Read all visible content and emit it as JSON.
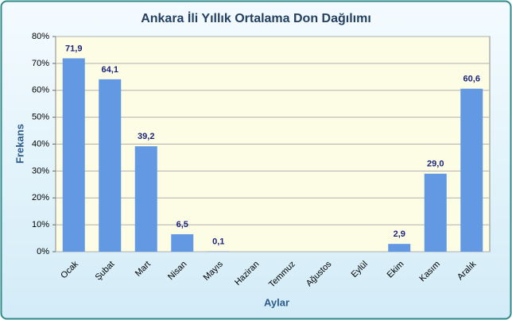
{
  "chart_data": {
    "type": "bar",
    "title": "Ankara İli Yıllık Ortalama Don Dağılımı",
    "y_label": "Frekans",
    "x_label": "Aylar",
    "categories": [
      "Ocak",
      "Şubat",
      "Mart",
      "Nisan",
      "Mayıs",
      "Haziran",
      "Temmuz",
      "Ağustos",
      "Eylül",
      "Ekim",
      "Kasım",
      "Aralık"
    ],
    "values": [
      71.9,
      64.1,
      39.2,
      6.5,
      0.1,
      null,
      null,
      null,
      null,
      2.9,
      29.0,
      60.6
    ],
    "value_labels": [
      "71,9",
      "64,1",
      "39,2",
      "6,5",
      "0,1",
      null,
      null,
      null,
      null,
      "2,9",
      "29,0",
      "60,6"
    ],
    "color": "#6399e2",
    "ylim": [
      0,
      80
    ],
    "yticks": [
      {
        "value": 0,
        "label": "0%"
      },
      {
        "value": 10,
        "label": "10%"
      },
      {
        "value": 20,
        "label": "20%"
      },
      {
        "value": 30,
        "label": "30%"
      },
      {
        "value": 40,
        "label": "40%"
      },
      {
        "value": 50,
        "label": "50%"
      },
      {
        "value": 60,
        "label": "60%"
      },
      {
        "value": 70,
        "label": "70%"
      },
      {
        "value": 80,
        "label": "80%"
      }
    ],
    "grid": true
  }
}
